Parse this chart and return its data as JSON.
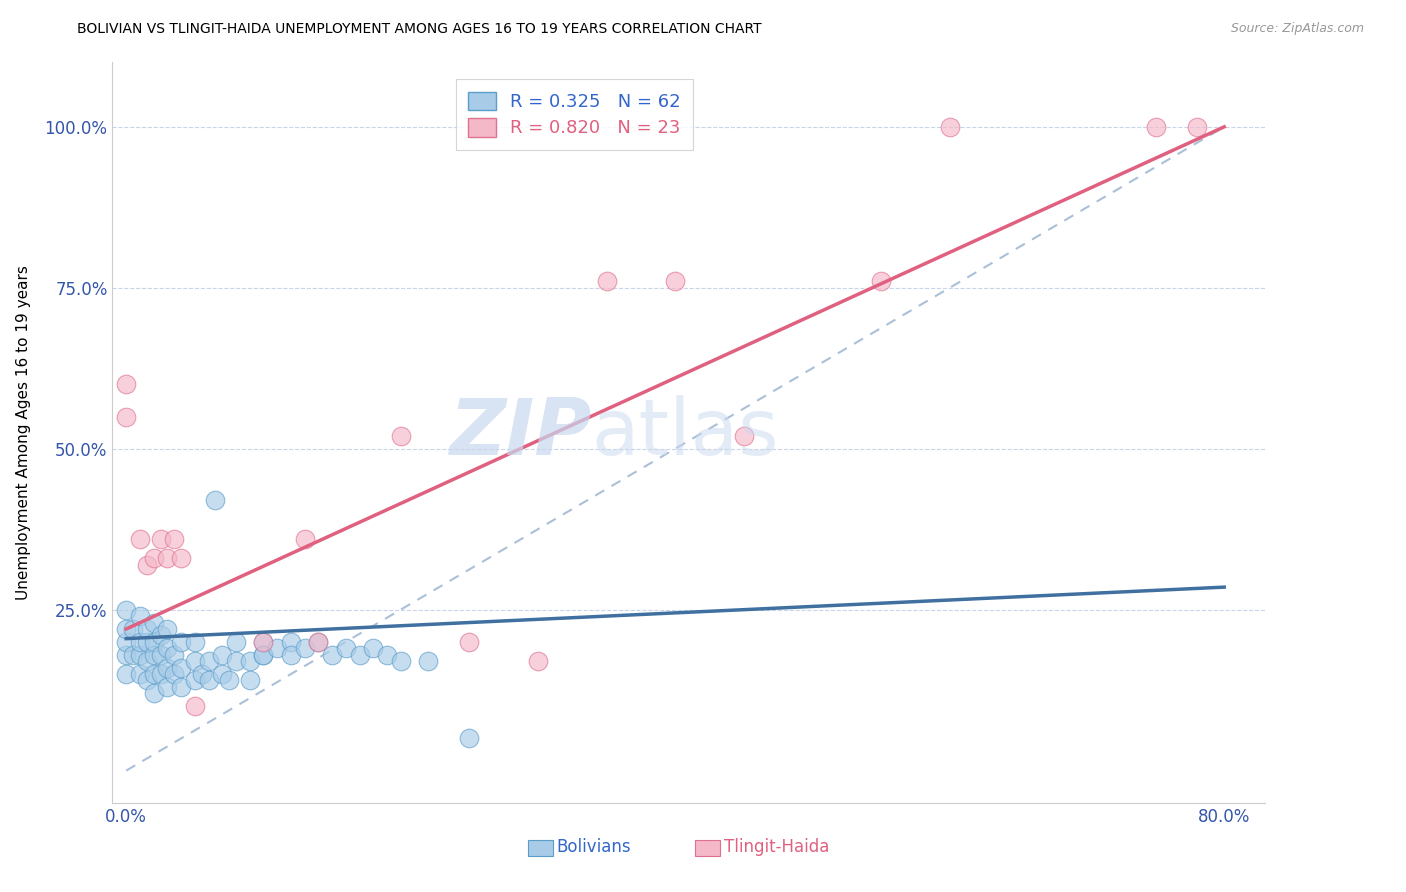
{
  "title": "BOLIVIAN VS TLINGIT-HAIDA UNEMPLOYMENT AMONG AGES 16 TO 19 YEARS CORRELATION CHART",
  "source": "Source: ZipAtlas.com",
  "ylabel": "Unemployment Among Ages 16 to 19 years",
  "xlim": [
    -0.01,
    0.83
  ],
  "ylim": [
    -0.05,
    1.1
  ],
  "R_bolivians": 0.325,
  "N_bolivians": 62,
  "R_tlingit": 0.82,
  "N_tlingit": 23,
  "bolivians_color": "#a8cce8",
  "tlingit_color": "#f4b8c8",
  "bolivians_edge_color": "#5b9dc9",
  "tlingit_edge_color": "#e07090",
  "bolivians_line_color": "#4070a0",
  "tlingit_line_color": "#e06080",
  "ref_line_color": "#aac0d8",
  "watermark_color": "#c8d8ee",
  "bolivians_x": [
    0.0,
    0.0,
    0.0,
    0.0,
    0.0,
    0.005,
    0.005,
    0.01,
    0.01,
    0.01,
    0.01,
    0.015,
    0.015,
    0.015,
    0.015,
    0.02,
    0.02,
    0.02,
    0.02,
    0.02,
    0.025,
    0.025,
    0.025,
    0.03,
    0.03,
    0.03,
    0.03,
    0.035,
    0.035,
    0.04,
    0.04,
    0.04,
    0.05,
    0.05,
    0.05,
    0.055,
    0.06,
    0.06,
    0.065,
    0.07,
    0.07,
    0.075,
    0.08,
    0.08,
    0.09,
    0.09,
    0.1,
    0.1,
    0.1,
    0.11,
    0.12,
    0.12,
    0.13,
    0.14,
    0.15,
    0.16,
    0.17,
    0.18,
    0.19,
    0.2,
    0.22,
    0.25
  ],
  "bolivians_y": [
    0.18,
    0.2,
    0.22,
    0.25,
    0.15,
    0.18,
    0.22,
    0.15,
    0.18,
    0.2,
    0.24,
    0.14,
    0.17,
    0.2,
    0.22,
    0.12,
    0.15,
    0.18,
    0.2,
    0.23,
    0.15,
    0.18,
    0.21,
    0.13,
    0.16,
    0.19,
    0.22,
    0.15,
    0.18,
    0.13,
    0.16,
    0.2,
    0.14,
    0.17,
    0.2,
    0.15,
    0.14,
    0.17,
    0.42,
    0.15,
    0.18,
    0.14,
    0.17,
    0.2,
    0.14,
    0.17,
    0.18,
    0.2,
    0.18,
    0.19,
    0.2,
    0.18,
    0.19,
    0.2,
    0.18,
    0.19,
    0.18,
    0.19,
    0.18,
    0.17,
    0.17,
    0.05
  ],
  "tlingit_x": [
    0.0,
    0.0,
    0.01,
    0.015,
    0.02,
    0.025,
    0.03,
    0.035,
    0.04,
    0.05,
    0.1,
    0.13,
    0.14,
    0.2,
    0.25,
    0.3,
    0.35,
    0.4,
    0.45,
    0.55,
    0.6,
    0.75,
    0.78
  ],
  "tlingit_y": [
    0.55,
    0.6,
    0.36,
    0.32,
    0.33,
    0.36,
    0.33,
    0.36,
    0.33,
    0.1,
    0.2,
    0.36,
    0.2,
    0.52,
    0.2,
    0.17,
    0.76,
    0.76,
    0.52,
    0.76,
    1.0,
    1.0,
    1.0
  ],
  "boli_line_x0": 0.0,
  "boli_line_x1": 0.8,
  "boli_line_y0": 0.205,
  "boli_line_y1": 0.285,
  "tlingit_line_x0": 0.0,
  "tlingit_line_x1": 0.8,
  "tlingit_line_y0": 0.22,
  "tlingit_line_y1": 1.0
}
